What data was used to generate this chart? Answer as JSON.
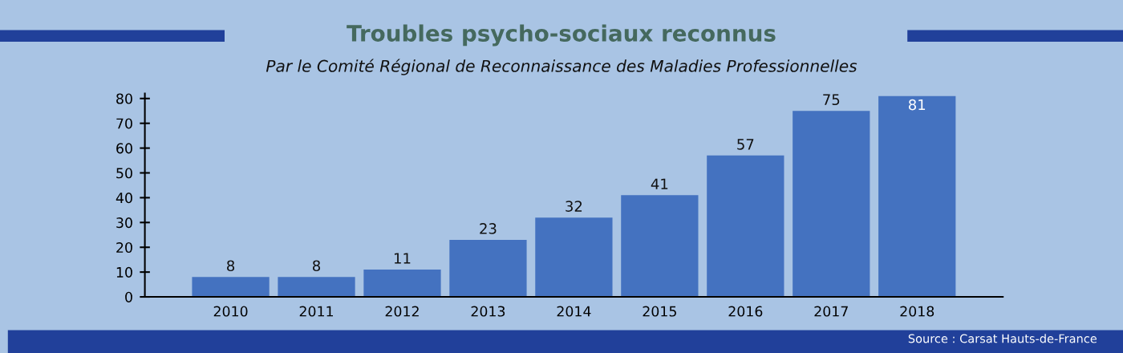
{
  "chart_data": {
    "type": "bar",
    "title": "Troubles psycho-sociaux reconnus",
    "subtitle": "Par le Comité Régional de Reconnaissance des Maladies Professionnelles",
    "categories": [
      "2010",
      "2011",
      "2012",
      "2013",
      "2014",
      "2015",
      "2016",
      "2017",
      "2018"
    ],
    "values": [
      8,
      8,
      11,
      23,
      32,
      41,
      57,
      75,
      81
    ],
    "color": "#4472c0",
    "ylim": [
      0,
      82
    ],
    "yticks": [
      0,
      10,
      20,
      30,
      40,
      50,
      60,
      70,
      80
    ],
    "grid": false,
    "data_labels": true,
    "annotations": [
      "Source : Carsat Hauts-de-France"
    ]
  }
}
